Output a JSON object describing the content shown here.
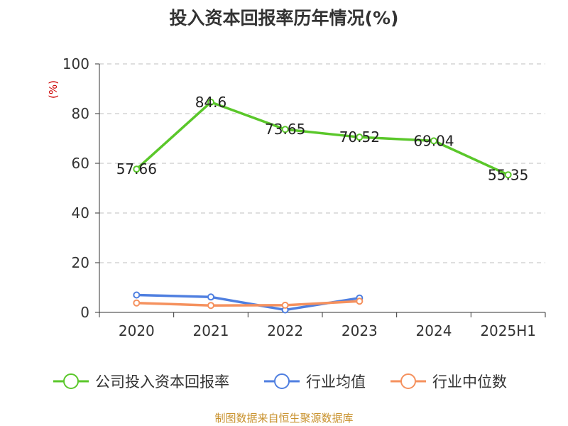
{
  "title": "投入资本回报率历年情况(%)",
  "source": "制图数据来自恒生聚源数据库",
  "colors": {
    "company": "#5ac72a",
    "industry_avg": "#4f7fe0",
    "industry_median": "#f5915e",
    "ylabel": "#cc0000",
    "grid": "#cccccc"
  },
  "chart_data": {
    "type": "line",
    "title": "投入资本回报率历年情况(%)",
    "xlabel": "",
    "ylabel": "(%)",
    "ylim": [
      0,
      100
    ],
    "yticks": [
      "0",
      "20",
      "40",
      "60",
      "80",
      "100"
    ],
    "categories": [
      "2020",
      "2021",
      "2022",
      "2023",
      "2024",
      "2025H1"
    ],
    "grid": "horizontal dashed",
    "legend": "bottom",
    "series": [
      {
        "name": "公司投入资本回报率",
        "color": "#5ac72a",
        "values": [
          57.66,
          84.6,
          73.65,
          70.52,
          69.04,
          55.35
        ],
        "labels": [
          "57.66",
          "84.6",
          "73.65",
          "70.52",
          "69.04",
          "55.35"
        ]
      },
      {
        "name": "行业均值",
        "color": "#4f7fe0",
        "values": [
          7.0,
          6.2,
          1.0,
          5.8,
          null,
          null
        ]
      },
      {
        "name": "行业中位数",
        "color": "#f5915e",
        "values": [
          3.8,
          2.8,
          2.9,
          4.5,
          null,
          null
        ]
      }
    ]
  }
}
